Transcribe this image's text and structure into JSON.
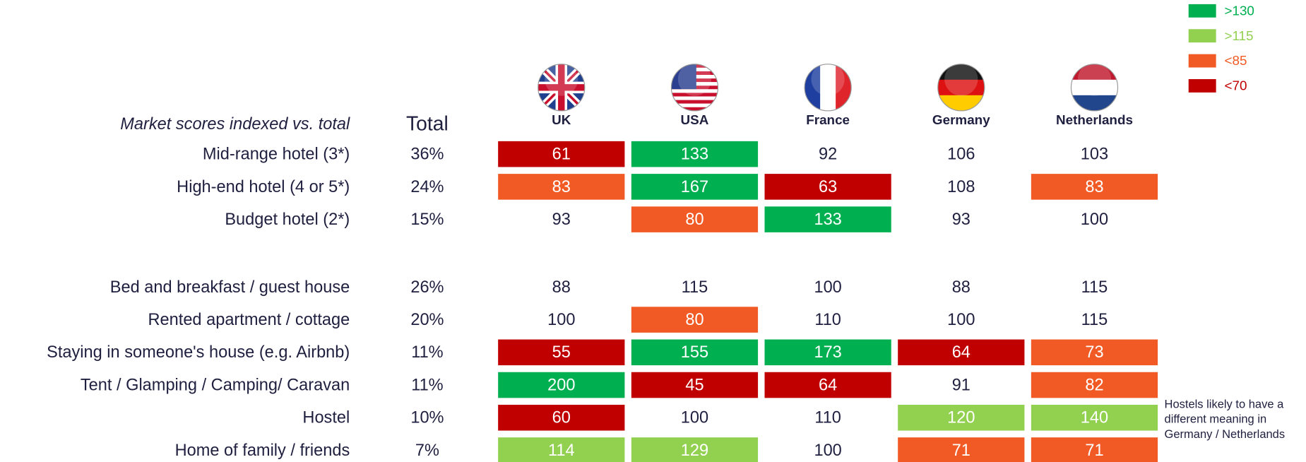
{
  "legend": [
    {
      "label": ">130",
      "color": "#00b050"
    },
    {
      "label": ">115",
      "color": "#92d050"
    },
    {
      "label": "<85",
      "color": "#f15a24"
    },
    {
      "label": "<70",
      "color": "#c00000"
    }
  ],
  "table": {
    "caption": "Market scores indexed vs. total",
    "total_header": "Total",
    "countries": [
      "UK",
      "USA",
      "France",
      "Germany",
      "Netherlands"
    ],
    "groups": [
      {
        "rows": [
          {
            "label": "Mid-range hotel (3*)",
            "total": "36%",
            "values": [
              61,
              133,
              92,
              106,
              103
            ],
            "colors": [
              "#c00000",
              "#00b050",
              null,
              null,
              null
            ]
          },
          {
            "label": "High-end hotel (4 or 5*)",
            "total": "24%",
            "values": [
              83,
              167,
              63,
              108,
              83
            ],
            "colors": [
              "#f15a24",
              "#00b050",
              "#c00000",
              null,
              "#f15a24"
            ]
          },
          {
            "label": "Budget hotel (2*)",
            "total": "15%",
            "values": [
              93,
              80,
              133,
              93,
              100
            ],
            "colors": [
              null,
              "#f15a24",
              "#00b050",
              null,
              null
            ]
          }
        ]
      },
      {
        "rows": [
          {
            "label": "Bed and breakfast / guest house",
            "total": "26%",
            "values": [
              88,
              115,
              100,
              88,
              115
            ],
            "colors": [
              null,
              null,
              null,
              null,
              null
            ]
          },
          {
            "label": "Rented apartment / cottage",
            "total": "20%",
            "values": [
              100,
              80,
              110,
              100,
              115
            ],
            "colors": [
              null,
              "#f15a24",
              null,
              null,
              null
            ]
          },
          {
            "label": "Staying in someone's house (e.g. Airbnb)",
            "total": "11%",
            "values": [
              55,
              155,
              173,
              64,
              73
            ],
            "colors": [
              "#c00000",
              "#00b050",
              "#00b050",
              "#c00000",
              "#f15a24"
            ]
          },
          {
            "label": "Tent / Glamping / Camping/ Caravan",
            "total": "11%",
            "values": [
              200,
              45,
              64,
              91,
              82
            ],
            "colors": [
              "#00b050",
              "#c00000",
              "#c00000",
              null,
              "#f15a24"
            ]
          },
          {
            "label": "Hostel",
            "total": "10%",
            "values": [
              60,
              100,
              110,
              120,
              140
            ],
            "colors": [
              "#c00000",
              null,
              null,
              "#92d050",
              "#92d050"
            ]
          },
          {
            "label": "Home of family / friends",
            "total": "7%",
            "values": [
              114,
              129,
              100,
              71,
              71
            ],
            "colors": [
              "#92d050",
              "#92d050",
              null,
              "#f15a24",
              "#f15a24"
            ]
          }
        ]
      }
    ]
  },
  "note": [
    "Hostels likely to have a",
    "different meaning in",
    "Germany / Netherlands"
  ]
}
